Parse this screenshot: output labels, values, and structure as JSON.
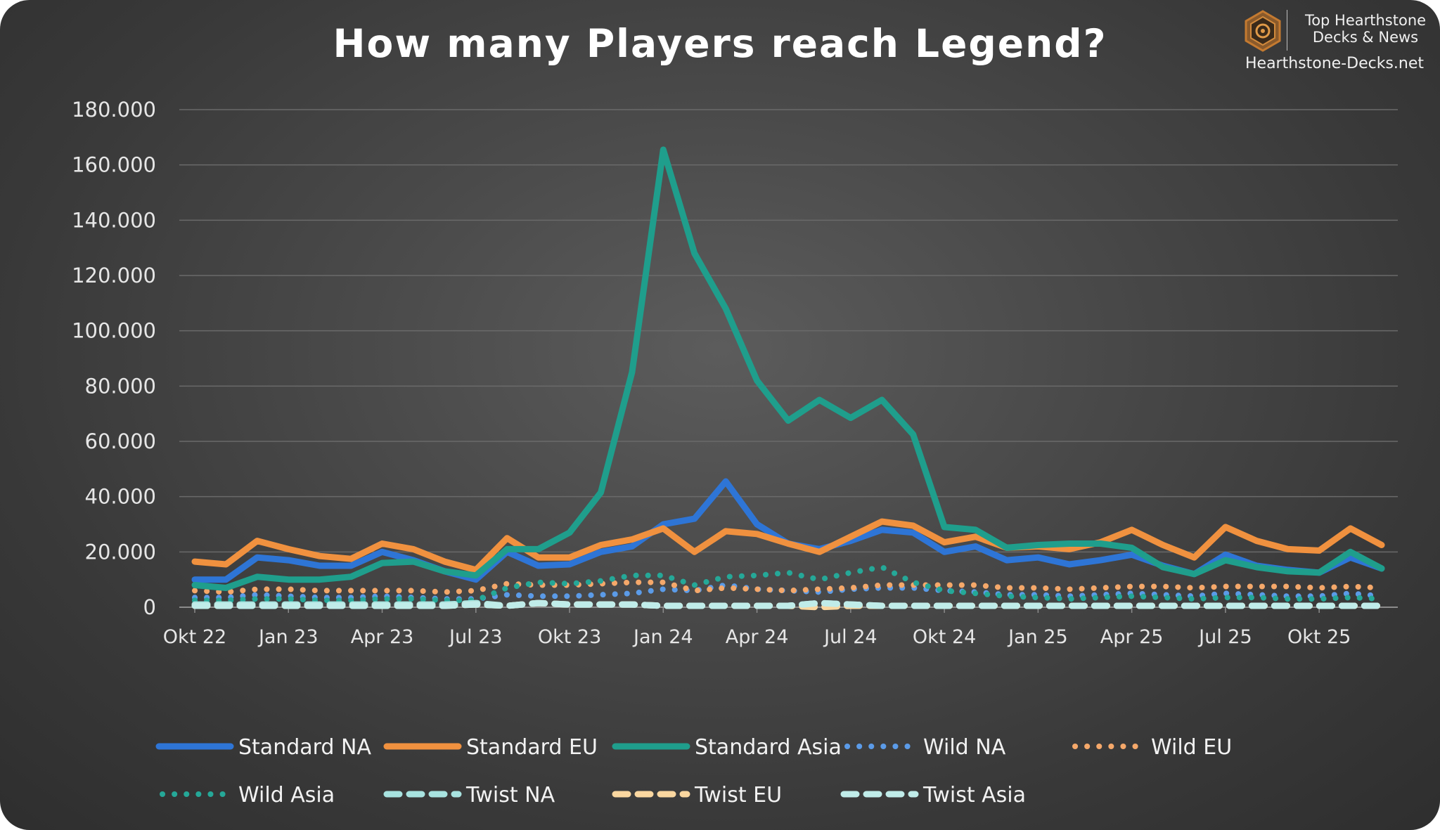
{
  "logo": {
    "line1": "Top Hearthstone",
    "line2": "Decks & News",
    "url": "Hearthstone-Decks.net",
    "icon": "hearthstone-hexagon-icon"
  },
  "chart_data": {
    "type": "line",
    "title": "How many Players reach Legend?",
    "xlabel": "",
    "ylabel": "",
    "ylim": [
      0,
      180000
    ],
    "yticks": [
      0,
      20000,
      40000,
      60000,
      80000,
      100000,
      120000,
      140000,
      160000,
      180000
    ],
    "ytick_labels": [
      "0",
      "20.000",
      "40.000",
      "60.000",
      "80.000",
      "100.000",
      "120.000",
      "140.000",
      "160.000",
      "180.000"
    ],
    "x": [
      "Okt 22",
      "Nov 22",
      "Dez 22",
      "Jan 23",
      "Feb 23",
      "Mrz 23",
      "Apr 23",
      "Mai 23",
      "Jun 23",
      "Jul 23",
      "Aug 23",
      "Sep 23",
      "Okt 23",
      "Nov 23",
      "Dez 23",
      "Jan 24",
      "Feb 24",
      "Mrz 24",
      "Apr 24",
      "Mai 24",
      "Jun 24",
      "Jul 24",
      "Aug 24",
      "Sep 24",
      "Okt 24",
      "Nov 24",
      "Dez 24",
      "Jan 25",
      "Feb 25",
      "Mrz 25",
      "Apr 25",
      "Mai 25",
      "Jun 25",
      "Jul 25",
      "Aug 25",
      "Sep 25",
      "Okt 25",
      "Nov 25",
      "Dez 25"
    ],
    "x_tick_labels": [
      "Okt 22",
      "Jan 23",
      "Apr 23",
      "Jul 23",
      "Okt 23",
      "Jan 24",
      "Apr 24",
      "Jul 24",
      "Okt 24",
      "Jan 25",
      "Apr 25",
      "Jul 25",
      "Okt 25"
    ],
    "x_tick_indices": [
      0,
      3,
      6,
      9,
      12,
      15,
      18,
      21,
      24,
      27,
      30,
      33,
      36
    ],
    "grid": true,
    "legend_position": "bottom",
    "series": [
      {
        "name": "Standard NA",
        "color": "#2e75d6",
        "style": "solid",
        "values": [
          10000,
          10000,
          18000,
          17000,
          15000,
          15000,
          20000,
          17000,
          13000,
          10000,
          20000,
          15000,
          15500,
          20000,
          22000,
          30000,
          32000,
          45500,
          30000,
          23000,
          21000,
          24000,
          28000,
          27000,
          20000,
          22000,
          17000,
          18000,
          15500,
          17000,
          19000,
          15000,
          12000,
          19000,
          15000,
          13500,
          12500,
          18000,
          14000
        ]
      },
      {
        "name": "Standard EU",
        "color": "#f0913f",
        "style": "solid",
        "values": [
          16500,
          15500,
          24000,
          21000,
          18500,
          17500,
          23000,
          21000,
          16500,
          13500,
          25000,
          18000,
          18000,
          22500,
          24500,
          28500,
          20000,
          27500,
          26500,
          23000,
          20000,
          25500,
          31000,
          29500,
          23500,
          25500,
          21500,
          22000,
          21000,
          23500,
          28000,
          22500,
          18000,
          29000,
          24000,
          21000,
          20500,
          28500,
          22500
        ]
      },
      {
        "name": "Standard Asia",
        "color": "#1f9e8c",
        "style": "solid",
        "values": [
          8000,
          7000,
          11000,
          10000,
          10000,
          11000,
          16000,
          16500,
          13000,
          11500,
          21000,
          21000,
          27000,
          41500,
          85000,
          165500,
          128000,
          108000,
          82000,
          67500,
          75000,
          68500,
          75000,
          62500,
          29000,
          28000,
          21500,
          22500,
          23000,
          23000,
          21500,
          14500,
          12000,
          17000,
          14500,
          13000,
          12500,
          20000,
          14000
        ]
      },
      {
        "name": "Wild NA",
        "color": "#5b9be8",
        "style": "dotted",
        "values": [
          3500,
          3500,
          4500,
          4000,
          3500,
          3500,
          4000,
          3500,
          3000,
          3000,
          4500,
          4000,
          4000,
          4500,
          5000,
          6500,
          6000,
          8000,
          6500,
          6000,
          5500,
          6500,
          7000,
          7000,
          6000,
          5500,
          4500,
          4500,
          4000,
          4500,
          5000,
          4500,
          4000,
          5000,
          4500,
          4000,
          4000,
          5000,
          4000
        ]
      },
      {
        "name": "Wild EU",
        "color": "#f5a86a",
        "style": "dotted",
        "values": [
          6000,
          5500,
          6500,
          6500,
          6000,
          6000,
          6000,
          6000,
          5500,
          6000,
          8500,
          8000,
          8000,
          8500,
          9000,
          9000,
          6000,
          7000,
          6500,
          6000,
          6500,
          7000,
          8000,
          8000,
          8000,
          8000,
          7000,
          7000,
          6500,
          7000,
          7500,
          7500,
          7000,
          7500,
          7500,
          7500,
          7000,
          7500,
          7000
        ]
      },
      {
        "name": "Wild Asia",
        "color": "#25a898",
        "style": "dotted",
        "values": [
          2500,
          2500,
          3000,
          3000,
          2500,
          2500,
          3000,
          3000,
          2500,
          2500,
          7000,
          9000,
          8500,
          9500,
          11500,
          11500,
          8000,
          11000,
          11500,
          12500,
          10000,
          12500,
          14500,
          9000,
          6000,
          5000,
          4000,
          3500,
          3000,
          3500,
          4000,
          3500,
          3000,
          3500,
          3500,
          3000,
          3000,
          3500,
          3000
        ]
      },
      {
        "name": "Twist NA",
        "color": "#a8e3e0",
        "style": "dashed",
        "values": [
          1000,
          1000,
          1000,
          1000,
          1000,
          1000,
          1000,
          1000,
          1000,
          1500,
          500,
          1500,
          1000,
          1000,
          1000,
          500,
          500,
          500,
          500,
          500,
          1500,
          1000,
          500,
          500,
          500,
          500,
          500,
          500,
          500,
          500,
          500,
          500,
          500,
          500,
          500,
          500,
          500,
          500,
          500
        ]
      },
      {
        "name": "Twist EU",
        "color": "#fad7a0",
        "style": "dashed",
        "values": [
          500,
          500,
          500,
          500,
          500,
          500,
          500,
          500,
          500,
          1000,
          500,
          1500,
          1000,
          1000,
          1000,
          500,
          500,
          500,
          500,
          500,
          0,
          500,
          500,
          500,
          500,
          500,
          500,
          500,
          500,
          500,
          500,
          500,
          500,
          500,
          500,
          500,
          500,
          500,
          500
        ]
      },
      {
        "name": "Twist Asia",
        "color": "#c0ece9",
        "style": "dashed",
        "values": [
          500,
          500,
          500,
          500,
          500,
          500,
          500,
          500,
          500,
          1000,
          500,
          1500,
          1000,
          1000,
          1000,
          500,
          500,
          500,
          500,
          500,
          1500,
          1000,
          500,
          500,
          500,
          500,
          500,
          500,
          500,
          500,
          500,
          500,
          500,
          500,
          500,
          500,
          500,
          500,
          500
        ]
      }
    ]
  }
}
